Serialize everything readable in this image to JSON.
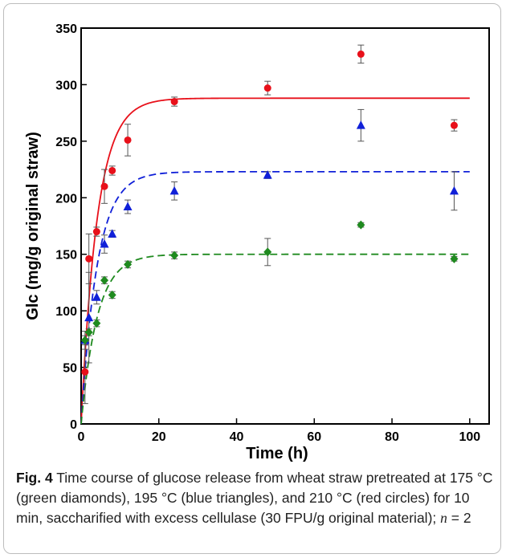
{
  "chart_data": {
    "type": "scatter",
    "xlabel": "Time (h)",
    "ylabel": "Glc (mg/g original straw)",
    "xlim": [
      0,
      105
    ],
    "ylim": [
      0,
      350
    ],
    "xticks": [
      0,
      20,
      40,
      60,
      80,
      100
    ],
    "yticks": [
      0,
      50,
      100,
      150,
      200,
      250,
      300,
      350
    ],
    "series": [
      {
        "color": "#e8101a",
        "marker": "circle",
        "x": [
          1,
          2,
          4,
          6,
          8,
          12,
          24,
          48,
          72,
          96
        ],
        "y": [
          46,
          146,
          170,
          210,
          224,
          251,
          285,
          297,
          327,
          264
        ],
        "err": [
          28,
          22,
          4,
          15,
          4,
          14,
          4,
          6,
          8,
          5
        ],
        "fit": {
          "style": "solid",
          "plateau": 288,
          "k": 0.24
        }
      },
      {
        "color": "#1020d8",
        "marker": "triangle",
        "x": [
          1,
          2,
          4,
          6,
          8,
          12,
          24,
          48,
          72,
          96
        ],
        "y": [
          74,
          94,
          112,
          159,
          168,
          192,
          206,
          220,
          264,
          206
        ],
        "err": [
          8,
          40,
          6,
          8,
          3,
          6,
          8,
          3,
          14,
          17
        ],
        "fit": {
          "style": "dashed",
          "plateau": 223,
          "k": 0.24
        }
      },
      {
        "color": "#1f8a1f",
        "marker": "diamond",
        "x": [
          1,
          2,
          4,
          6,
          8,
          12,
          24,
          48,
          72,
          96
        ],
        "y": [
          74,
          81,
          89,
          127,
          114,
          141,
          149,
          152,
          176,
          146
        ],
        "err": [
          4,
          3,
          3,
          3,
          3,
          3,
          3,
          12,
          2,
          2
        ],
        "fit": {
          "style": "dashed",
          "plateau": 150,
          "k": 0.24
        }
      }
    ]
  },
  "caption": {
    "label": "Fig. 4",
    "text": " Time course of glucose release from wheat straw pretreated at 175 °C (green diamonds), 195 °C (blue triangles), and 210 °C (red circles) for 10 min, saccharified with excess cellulase (30 FPU/g original material); ",
    "n_var": "n",
    "n_value": " = 2"
  }
}
